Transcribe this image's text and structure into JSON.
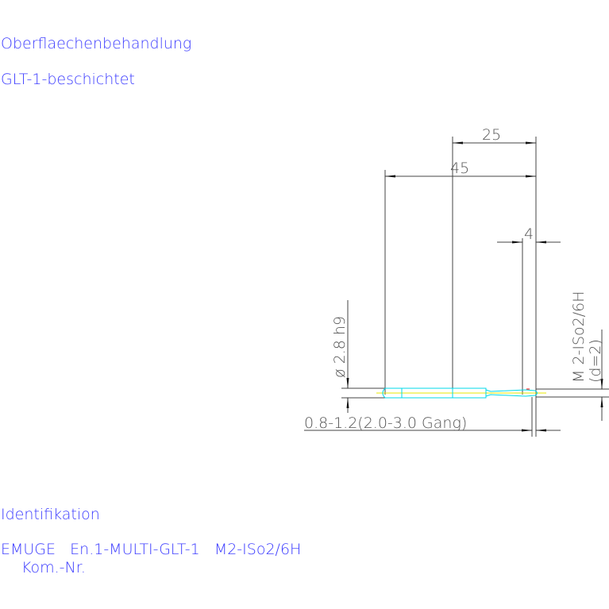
{
  "header": {
    "surface_label": "Oberflaechenbehandlung",
    "surface_value": "GLT-1-beschichtet"
  },
  "drawing": {
    "dim_25": "25",
    "dim_45": "45",
    "dim_4": "4",
    "diameter": "ø 2.8 h9",
    "thread": "M 2-ISo2/6H",
    "thread_d": "(d=2)",
    "core_hole": "0.8-1.2(2.0-3.0 Gang)",
    "colors": {
      "text": "#3c3cff",
      "lines": "#444444",
      "tool": "#00d8e8",
      "axis": "#e8e800"
    }
  },
  "footer": {
    "ident_label": "Identifikation",
    "ident_value": "EMUGE   En.1-MULTI-GLT-1   M2-ISo2/6H",
    "kom_label": "Kom.-Nr."
  }
}
